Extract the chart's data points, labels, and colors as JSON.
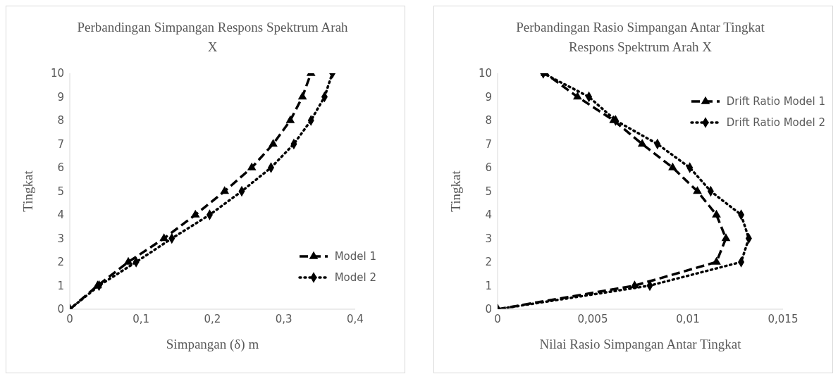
{
  "chart_data": [
    {
      "type": "line",
      "title": "Perbandingan Simpangan Respons Spektrum Arah X",
      "xlabel": "Simpangan (δ) m",
      "ylabel": "Tingkat",
      "xlim": [
        0,
        0.4
      ],
      "xticks": [
        0,
        {
          "value": 0.1,
          "label": "0,1"
        },
        {
          "value": 0.2,
          "label": "0,2"
        },
        {
          "value": 0.3,
          "label": "0,3"
        },
        {
          "value": 0.4,
          "label": "0,4"
        }
      ],
      "ylim": [
        0,
        10
      ],
      "yticks": [
        0,
        1,
        2,
        3,
        4,
        5,
        6,
        7,
        8,
        9,
        10
      ],
      "grid": false,
      "legend": "bottom right",
      "series": [
        {
          "name": "Model 1",
          "color": "#000000",
          "marker": "triangle",
          "line_style": "dashed",
          "x": [
            0,
            0.039,
            0.082,
            0.132,
            0.176,
            0.217,
            0.255,
            0.285,
            0.309,
            0.326,
            0.338
          ],
          "values": [
            0,
            1,
            2,
            3,
            4,
            5,
            6,
            7,
            8,
            9,
            10
          ]
        },
        {
          "name": "Model 2",
          "color": "#000000",
          "marker": "diamond",
          "line_style": "dotted",
          "x": [
            0,
            0.041,
            0.093,
            0.143,
            0.196,
            0.241,
            0.282,
            0.314,
            0.338,
            0.357,
            0.368
          ],
          "values": [
            0,
            1,
            2,
            3,
            4,
            5,
            6,
            7,
            8,
            9,
            10
          ]
        }
      ]
    },
    {
      "type": "line",
      "title": "Perbandingan Rasio Simpangan Antar Tingkat Respons Spektrum Arah X",
      "xlabel": "Nilai Rasio Simpangan Antar Tingkat",
      "ylabel": "Tingkat",
      "xlim": [
        0,
        0.015
      ],
      "xticks": [
        0,
        {
          "value": 0.005,
          "label": "0,005"
        },
        {
          "value": 0.01,
          "label": "0,01"
        },
        {
          "value": 0.015,
          "label": "0,015"
        }
      ],
      "ylim": [
        0,
        10
      ],
      "yticks": [
        0,
        1,
        2,
        3,
        4,
        5,
        6,
        7,
        8,
        9,
        10
      ],
      "grid": false,
      "legend": "top right",
      "series": [
        {
          "name": "Drift Ratio Model 1",
          "color": "#000000",
          "marker": "triangle",
          "line_style": "dashed",
          "x": [
            0,
            0.0072,
            0.0115,
            0.012,
            0.0115,
            0.0105,
            0.0092,
            0.0076,
            0.0061,
            0.0042,
            0.0025
          ],
          "values": [
            0,
            1,
            2,
            3,
            4,
            5,
            6,
            7,
            8,
            9,
            10
          ]
        },
        {
          "name": "Drift Ratio Model 2",
          "color": "#000000",
          "marker": "diamond",
          "line_style": "dotted",
          "x": [
            0,
            0.008,
            0.0128,
            0.0132,
            0.0128,
            0.0112,
            0.0101,
            0.0084,
            0.0062,
            0.0048,
            0.0024
          ],
          "values": [
            0,
            1,
            2,
            3,
            4,
            5,
            6,
            7,
            8,
            9,
            10
          ]
        }
      ]
    }
  ]
}
